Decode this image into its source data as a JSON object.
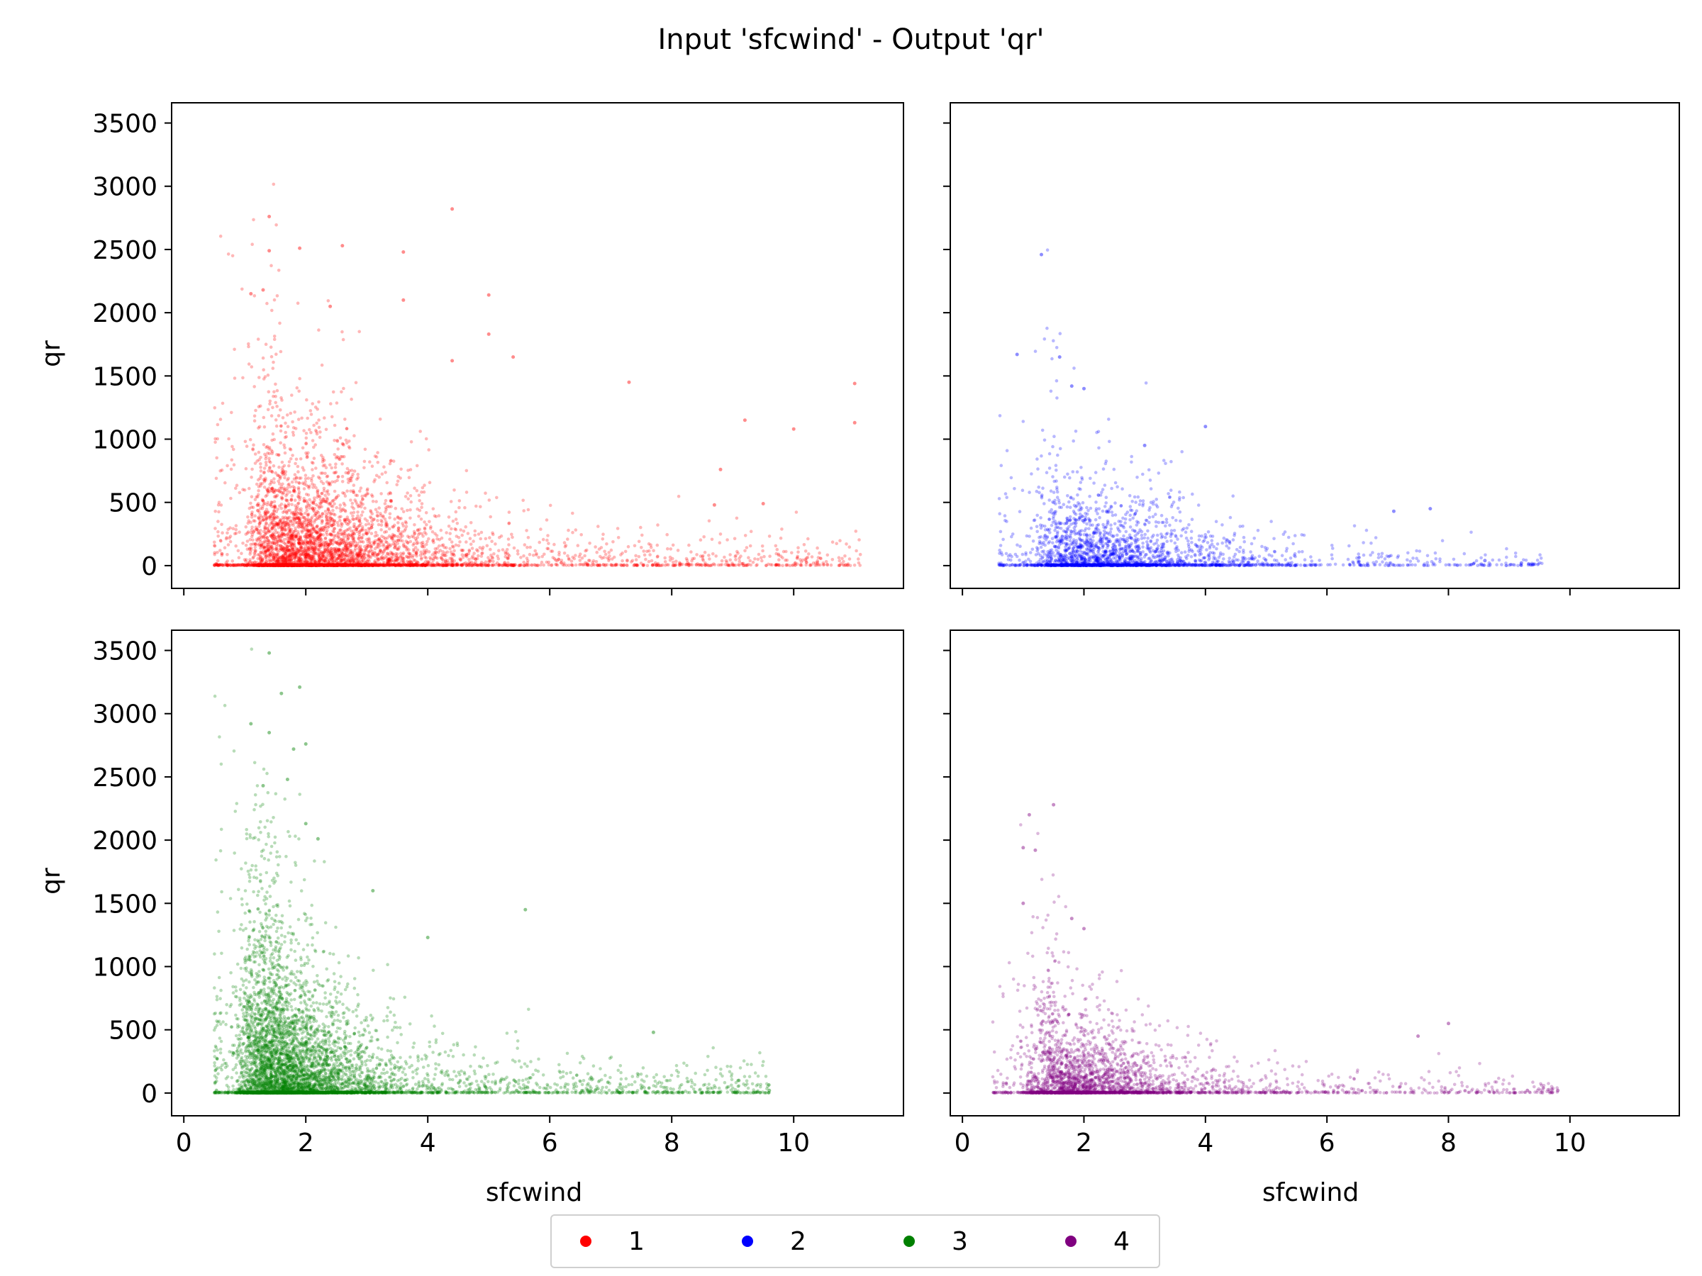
{
  "chart_data": {
    "type": "scatter",
    "title": "Input 'sfcwind' - Output 'qr'",
    "xlabel": "sfcwind",
    "ylabel": "qr",
    "xlim": [
      -0.2,
      11.8
    ],
    "ylim": [
      -180,
      3660
    ],
    "xticks": [
      0,
      2,
      4,
      6,
      8,
      10
    ],
    "yticks": [
      0,
      500,
      1000,
      1500,
      2000,
      2500,
      3000,
      3500
    ],
    "grid": false,
    "legend": {
      "placement": "bottom-center",
      "entries": [
        "1",
        "2",
        "3",
        "4"
      ]
    },
    "panels": [
      {
        "series": "1",
        "color": "#ff0000",
        "row": 0,
        "col": 0,
        "cloud": {
          "x_peak": 2.6,
          "x_spread": 1.5,
          "x_min": 0.5,
          "x_max": 11.1,
          "y_scale": 190,
          "count": 5200
        },
        "outliers": [
          [
            1.4,
            2760
          ],
          [
            4.4,
            2820
          ],
          [
            2.6,
            2530
          ],
          [
            1.4,
            2490
          ],
          [
            1.9,
            2510
          ],
          [
            3.6,
            2480
          ],
          [
            5.0,
            2140
          ],
          [
            1.1,
            2150
          ],
          [
            1.3,
            2180
          ],
          [
            2.4,
            2050
          ],
          [
            3.6,
            2100
          ],
          [
            5.0,
            1830
          ],
          [
            4.4,
            1620
          ],
          [
            5.4,
            1650
          ],
          [
            7.3,
            1450
          ],
          [
            11.0,
            1440
          ],
          [
            11.0,
            1130
          ],
          [
            9.2,
            1150
          ],
          [
            10.0,
            1080
          ],
          [
            8.8,
            760
          ],
          [
            8.7,
            480
          ],
          [
            9.5,
            490
          ]
        ]
      },
      {
        "series": "2",
        "color": "#0000ff",
        "row": 0,
        "col": 1,
        "cloud": {
          "x_peak": 2.8,
          "x_spread": 1.4,
          "x_min": 0.6,
          "x_max": 9.6,
          "y_scale": 130,
          "count": 2600
        },
        "outliers": [
          [
            1.3,
            2460
          ],
          [
            0.9,
            1670
          ],
          [
            1.6,
            1650
          ],
          [
            1.8,
            1420
          ],
          [
            2.0,
            1400
          ],
          [
            4.0,
            1100
          ],
          [
            3.0,
            950
          ],
          [
            7.1,
            430
          ],
          [
            7.7,
            450
          ],
          [
            8.6,
            40
          ],
          [
            9.2,
            20
          ]
        ]
      },
      {
        "series": "3",
        "color": "#008000",
        "row": 1,
        "col": 0,
        "cloud": {
          "x_peak": 2.0,
          "x_spread": 1.3,
          "x_min": 0.5,
          "x_max": 9.6,
          "y_scale": 210,
          "count": 6200
        },
        "outliers": [
          [
            1.4,
            3480
          ],
          [
            1.6,
            3160
          ],
          [
            1.9,
            3210
          ],
          [
            1.1,
            2920
          ],
          [
            1.4,
            2850
          ],
          [
            1.8,
            2720
          ],
          [
            2.0,
            2760
          ],
          [
            1.3,
            2430
          ],
          [
            1.7,
            2480
          ],
          [
            2.0,
            2130
          ],
          [
            2.2,
            2010
          ],
          [
            5.6,
            1450
          ],
          [
            3.1,
            1600
          ],
          [
            4.0,
            1230
          ],
          [
            7.7,
            480
          ],
          [
            9.1,
            100
          ],
          [
            9.6,
            20
          ]
        ]
      },
      {
        "series": "4",
        "color": "#800080",
        "row": 1,
        "col": 1,
        "cloud": {
          "x_peak": 2.4,
          "x_spread": 1.3,
          "x_min": 0.5,
          "x_max": 9.8,
          "y_scale": 120,
          "count": 3000
        },
        "outliers": [
          [
            1.1,
            2200
          ],
          [
            1.5,
            2280
          ],
          [
            1.0,
            1940
          ],
          [
            1.2,
            1920
          ],
          [
            1.0,
            1500
          ],
          [
            1.8,
            1380
          ],
          [
            2.0,
            1300
          ],
          [
            7.5,
            450
          ],
          [
            8.0,
            550
          ],
          [
            9.3,
            20
          ],
          [
            9.8,
            20
          ]
        ]
      }
    ]
  }
}
